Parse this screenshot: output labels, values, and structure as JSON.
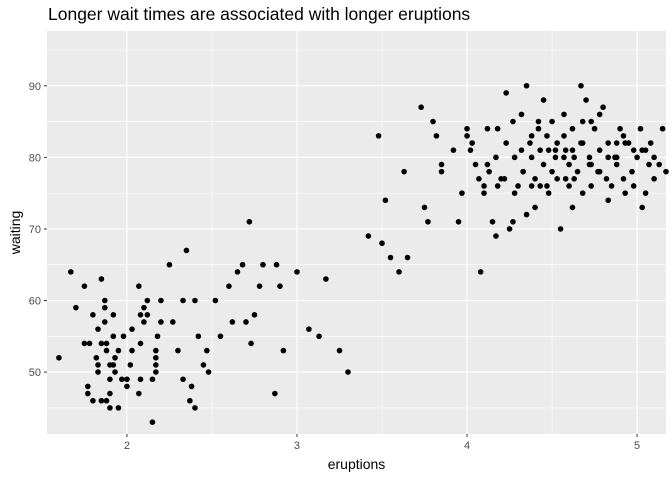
{
  "chart_data": {
    "type": "scatter",
    "title": "Longer wait times are associated with longer eruptions",
    "xlabel": "eruptions",
    "ylabel": "waiting",
    "xlim": [
      1.53,
      5.17
    ],
    "ylim": [
      41.35,
      97.65
    ],
    "xticks": [
      2,
      3,
      4,
      5
    ],
    "yticks": [
      50,
      60,
      70,
      80,
      90
    ],
    "grid": true,
    "legend": "none",
    "colors": {
      "panel": "#ebebeb",
      "grid": "#ffffff",
      "point": "#000000",
      "tick_text": "#4d4d4d"
    },
    "points": [
      [
        1.6,
        52
      ],
      [
        1.67,
        64
      ],
      [
        1.7,
        59
      ],
      [
        1.75,
        54
      ],
      [
        1.75,
        62
      ],
      [
        1.77,
        48
      ],
      [
        1.77,
        47
      ],
      [
        1.78,
        54
      ],
      [
        1.8,
        58
      ],
      [
        1.8,
        46
      ],
      [
        1.82,
        52
      ],
      [
        1.83,
        51
      ],
      [
        1.83,
        56
      ],
      [
        1.83,
        50
      ],
      [
        1.85,
        54
      ],
      [
        1.85,
        46
      ],
      [
        1.85,
        63
      ],
      [
        1.87,
        60
      ],
      [
        1.87,
        59
      ],
      [
        1.87,
        57
      ],
      [
        1.88,
        53
      ],
      [
        1.88,
        54
      ],
      [
        1.88,
        46
      ],
      [
        1.9,
        49
      ],
      [
        1.9,
        51
      ],
      [
        1.9,
        47
      ],
      [
        1.9,
        45
      ],
      [
        1.92,
        58
      ],
      [
        1.92,
        55
      ],
      [
        1.92,
        51
      ],
      [
        1.93,
        52
      ],
      [
        1.93,
        50
      ],
      [
        1.95,
        53
      ],
      [
        1.95,
        45
      ],
      [
        1.97,
        49
      ],
      [
        1.98,
        55
      ],
      [
        2.0,
        49
      ],
      [
        2.0,
        48
      ],
      [
        2.02,
        51
      ],
      [
        2.03,
        56
      ],
      [
        2.03,
        53
      ],
      [
        2.07,
        47
      ],
      [
        2.07,
        62
      ],
      [
        2.08,
        58
      ],
      [
        2.08,
        49
      ],
      [
        2.08,
        54
      ],
      [
        2.1,
        59
      ],
      [
        2.1,
        57
      ],
      [
        2.12,
        58
      ],
      [
        2.12,
        60
      ],
      [
        2.15,
        43
      ],
      [
        2.15,
        49
      ],
      [
        2.17,
        50
      ],
      [
        2.17,
        51
      ],
      [
        2.17,
        52
      ],
      [
        2.17,
        53
      ],
      [
        2.18,
        55
      ],
      [
        2.2,
        57
      ],
      [
        2.2,
        60
      ],
      [
        2.25,
        65
      ],
      [
        2.27,
        57
      ],
      [
        2.3,
        53
      ],
      [
        2.33,
        49
      ],
      [
        2.33,
        60
      ],
      [
        2.35,
        67
      ],
      [
        2.37,
        46
      ],
      [
        2.38,
        48
      ],
      [
        2.4,
        45
      ],
      [
        2.4,
        60
      ],
      [
        2.42,
        55
      ],
      [
        2.45,
        51
      ],
      [
        2.47,
        53
      ],
      [
        2.48,
        50
      ],
      [
        2.52,
        60
      ],
      [
        2.55,
        55
      ],
      [
        2.6,
        62
      ],
      [
        2.62,
        57
      ],
      [
        2.65,
        64
      ],
      [
        2.68,
        65
      ],
      [
        2.7,
        57
      ],
      [
        2.72,
        71
      ],
      [
        2.73,
        54
      ],
      [
        2.75,
        58
      ],
      [
        2.78,
        62
      ],
      [
        2.8,
        65
      ],
      [
        2.87,
        47
      ],
      [
        2.88,
        65
      ],
      [
        2.9,
        62
      ],
      [
        2.92,
        53
      ],
      [
        3.0,
        64
      ],
      [
        3.07,
        56
      ],
      [
        3.13,
        55
      ],
      [
        3.17,
        63
      ],
      [
        3.25,
        53
      ],
      [
        3.3,
        50
      ],
      [
        3.42,
        69
      ],
      [
        3.48,
        83
      ],
      [
        3.5,
        68
      ],
      [
        3.52,
        74
      ],
      [
        3.55,
        66
      ],
      [
        3.6,
        64
      ],
      [
        3.63,
        78
      ],
      [
        3.65,
        66
      ],
      [
        3.73,
        87
      ],
      [
        3.75,
        73
      ],
      [
        3.77,
        71
      ],
      [
        3.8,
        85
      ],
      [
        3.82,
        83
      ],
      [
        3.85,
        79
      ],
      [
        3.85,
        78
      ],
      [
        3.92,
        81
      ],
      [
        3.95,
        71
      ],
      [
        3.97,
        75
      ],
      [
        4.0,
        83
      ],
      [
        4.0,
        84
      ],
      [
        4.02,
        81
      ],
      [
        4.03,
        82
      ],
      [
        4.05,
        79
      ],
      [
        4.07,
        77
      ],
      [
        4.08,
        64
      ],
      [
        4.1,
        75
      ],
      [
        4.1,
        76
      ],
      [
        4.12,
        84
      ],
      [
        4.13,
        78
      ],
      [
        4.15,
        71
      ],
      [
        4.17,
        69
      ],
      [
        4.18,
        84
      ],
      [
        4.2,
        77
      ],
      [
        4.23,
        89
      ],
      [
        4.25,
        70
      ],
      [
        4.27,
        71
      ],
      [
        4.28,
        80
      ],
      [
        4.3,
        76
      ],
      [
        4.32,
        86
      ],
      [
        4.33,
        78
      ],
      [
        4.35,
        72
      ],
      [
        4.37,
        82
      ],
      [
        4.38,
        76
      ],
      [
        4.4,
        73
      ],
      [
        4.4,
        77
      ],
      [
        4.42,
        84
      ],
      [
        4.43,
        81
      ],
      [
        4.45,
        79
      ],
      [
        4.45,
        88
      ],
      [
        4.47,
        83
      ],
      [
        4.48,
        75
      ],
      [
        4.5,
        85
      ],
      [
        4.5,
        78
      ],
      [
        4.52,
        81
      ],
      [
        4.53,
        82
      ],
      [
        4.55,
        70
      ],
      [
        4.57,
        86
      ],
      [
        4.57,
        80
      ],
      [
        4.58,
        77
      ],
      [
        4.6,
        79
      ],
      [
        4.6,
        76
      ],
      [
        4.62,
        73
      ],
      [
        4.62,
        84
      ],
      [
        4.63,
        80
      ],
      [
        4.65,
        78
      ],
      [
        4.67,
        90
      ],
      [
        4.67,
        82
      ],
      [
        4.68,
        75
      ],
      [
        4.7,
        88
      ],
      [
        4.72,
        80
      ],
      [
        4.72,
        79
      ],
      [
        4.73,
        85
      ],
      [
        4.75,
        84
      ],
      [
        4.77,
        78
      ],
      [
        4.78,
        81
      ],
      [
        4.8,
        87
      ],
      [
        4.82,
        77
      ],
      [
        4.83,
        82
      ],
      [
        4.85,
        76
      ],
      [
        4.87,
        80
      ],
      [
        4.88,
        79
      ],
      [
        4.9,
        84
      ],
      [
        4.92,
        83
      ],
      [
        4.93,
        75
      ],
      [
        4.95,
        82
      ],
      [
        4.97,
        78
      ],
      [
        5.0,
        80
      ],
      [
        5.02,
        84
      ],
      [
        5.03,
        73
      ],
      [
        5.05,
        81
      ],
      [
        5.07,
        79
      ],
      [
        5.1,
        80
      ],
      [
        5.13,
        79
      ],
      [
        5.15,
        84
      ],
      [
        5.17,
        78
      ],
      [
        4.17,
        80
      ],
      [
        4.22,
        77
      ],
      [
        4.27,
        85
      ],
      [
        4.32,
        81
      ],
      [
        4.35,
        90
      ],
      [
        4.38,
        83
      ],
      [
        4.42,
        85
      ],
      [
        4.47,
        76
      ],
      [
        4.52,
        80
      ],
      [
        4.57,
        83
      ],
      [
        4.62,
        81
      ],
      [
        4.68,
        85
      ],
      [
        4.73,
        79
      ],
      [
        4.78,
        86
      ],
      [
        4.83,
        80
      ],
      [
        4.88,
        82
      ],
      [
        4.92,
        77
      ],
      [
        4.98,
        76
      ],
      [
        5.03,
        81
      ],
      [
        5.08,
        82
      ],
      [
        4.12,
        79
      ],
      [
        4.18,
        76
      ],
      [
        4.23,
        82
      ],
      [
        4.28,
        75
      ],
      [
        4.33,
        78
      ],
      [
        4.38,
        80
      ],
      [
        4.43,
        76
      ],
      [
        4.48,
        81
      ],
      [
        4.53,
        77
      ],
      [
        4.58,
        81
      ],
      [
        4.63,
        77
      ],
      [
        4.68,
        82
      ],
      [
        4.73,
        76
      ],
      [
        4.78,
        78
      ],
      [
        4.83,
        74
      ],
      [
        4.88,
        80
      ],
      [
        4.93,
        82
      ],
      [
        4.98,
        81
      ],
      [
        5.05,
        75
      ],
      [
        5.1,
        77
      ]
    ]
  }
}
